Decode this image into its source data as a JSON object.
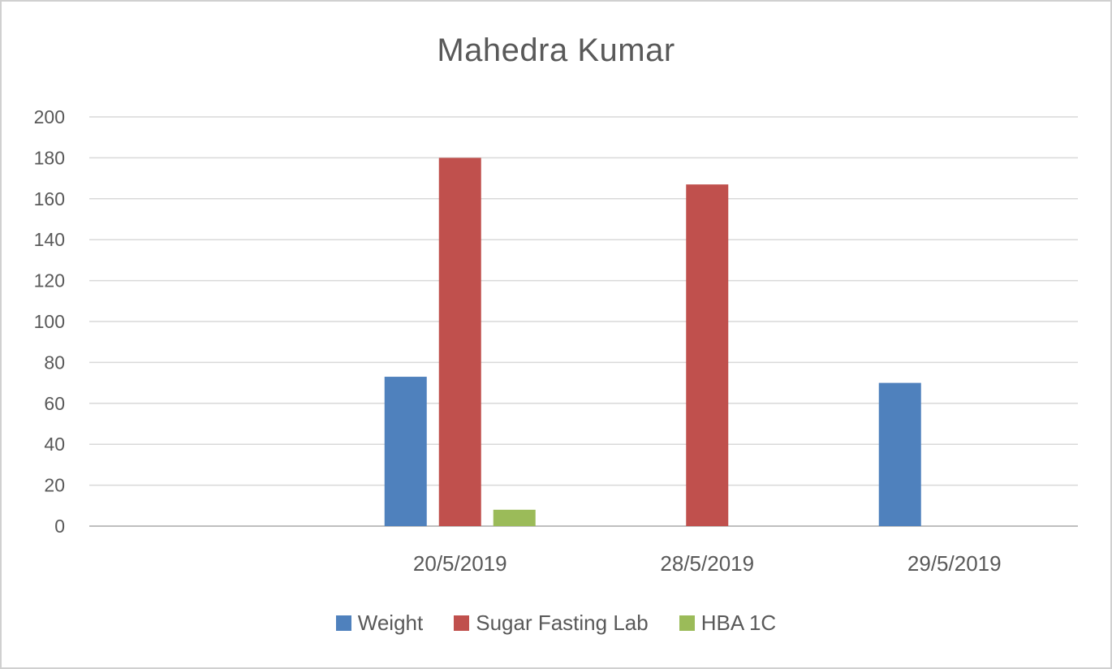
{
  "chart_data": {
    "type": "bar",
    "title": "Mahedra Kumar",
    "categories": [
      "",
      "20/5/2019",
      "28/5/2019",
      "29/5/2019"
    ],
    "series": [
      {
        "name": "Weight",
        "color": "#4f81bd",
        "values": [
          null,
          73,
          null,
          70
        ]
      },
      {
        "name": "Sugar Fasting Lab",
        "color": "#c0504d",
        "values": [
          null,
          180,
          167,
          null
        ]
      },
      {
        "name": "HBA 1C",
        "color": "#9bbb59",
        "values": [
          null,
          8,
          null,
          null
        ]
      }
    ],
    "yticks": [
      "0",
      "20",
      "40",
      "60",
      "80",
      "100",
      "120",
      "140",
      "160",
      "180",
      "200"
    ],
    "ylim": [
      0,
      200
    ],
    "grid": true,
    "legend_position": "bottom",
    "xlabel": "",
    "ylabel": ""
  }
}
